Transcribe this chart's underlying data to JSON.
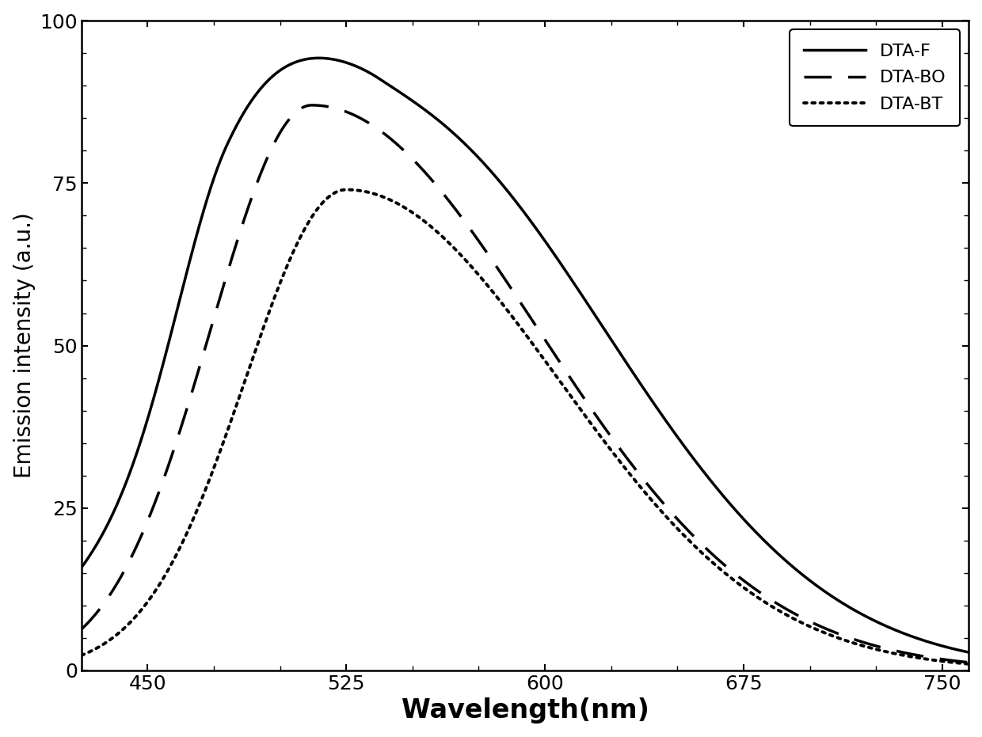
{
  "title": "",
  "xlabel": "Wavelength(nm)",
  "ylabel": "Emission intensity (a.u.)",
  "xlim": [
    425,
    760
  ],
  "ylim": [
    0,
    100
  ],
  "xticks": [
    450,
    525,
    600,
    675,
    750
  ],
  "yticks": [
    0,
    25,
    50,
    75,
    100
  ],
  "curves": {
    "DTA_F": {
      "label": "DTA-F",
      "style": "solid",
      "linewidth": 2.5,
      "color": "#000000",
      "components": [
        {
          "peak_x": 480,
          "peak_y": 25.5,
          "sigma_l": 20,
          "sigma_r": 30
        },
        {
          "peak_x": 537,
          "peak_y": 87,
          "sigma_l": 60,
          "sigma_r": 85
        }
      ],
      "base": 5.5,
      "base_decay": 15
    },
    "DTA_BO": {
      "label": "DTA-BO",
      "style": "dashed",
      "linewidth": 2.5,
      "color": "#000000",
      "components": [
        {
          "peak_x": 512,
          "peak_y": 87,
          "sigma_l": 38,
          "sigma_r": 85
        }
      ],
      "base": 5.5,
      "base_decay": 15
    },
    "DTA_BT": {
      "label": "DTA-BT",
      "style": "dotted",
      "linewidth": 2.8,
      "color": "#000000",
      "components": [
        {
          "peak_x": 525,
          "peak_y": 74,
          "sigma_l": 38,
          "sigma_r": 80
        }
      ],
      "base": 2.0,
      "base_decay": 15
    }
  },
  "legend_loc": "upper right",
  "legend_fontsize": 16,
  "tick_fontsize": 18,
  "xlabel_fontsize": 24,
  "ylabel_fontsize": 20,
  "background_color": "#ffffff",
  "figure_bg": "#ffffff"
}
